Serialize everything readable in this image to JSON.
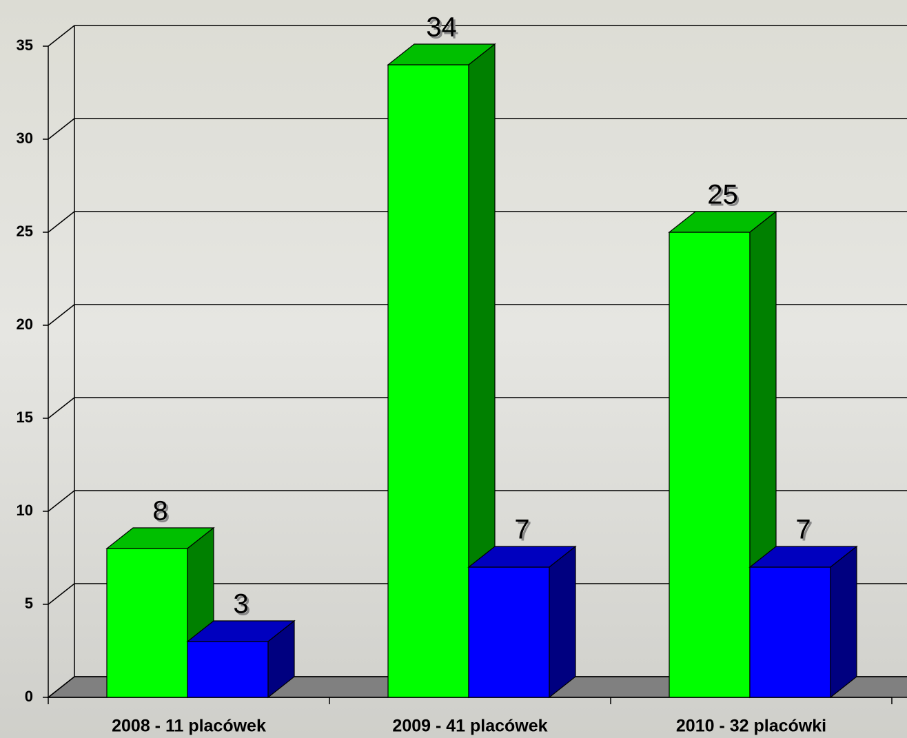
{
  "chart_data": {
    "type": "bar3d",
    "categories": [
      "2008 - 11 placówek",
      "2009 - 41 placówek",
      "2010 - 32 placówki"
    ],
    "series": [
      {
        "color": "#00ff00",
        "values": [
          8,
          34,
          25
        ]
      },
      {
        "color": "#0000ff",
        "values": [
          3,
          7,
          7
        ]
      }
    ],
    "ylim": [
      0,
      35
    ],
    "yticks": [
      0,
      5,
      10,
      15,
      20,
      25,
      30,
      35
    ],
    "grid": true
  }
}
